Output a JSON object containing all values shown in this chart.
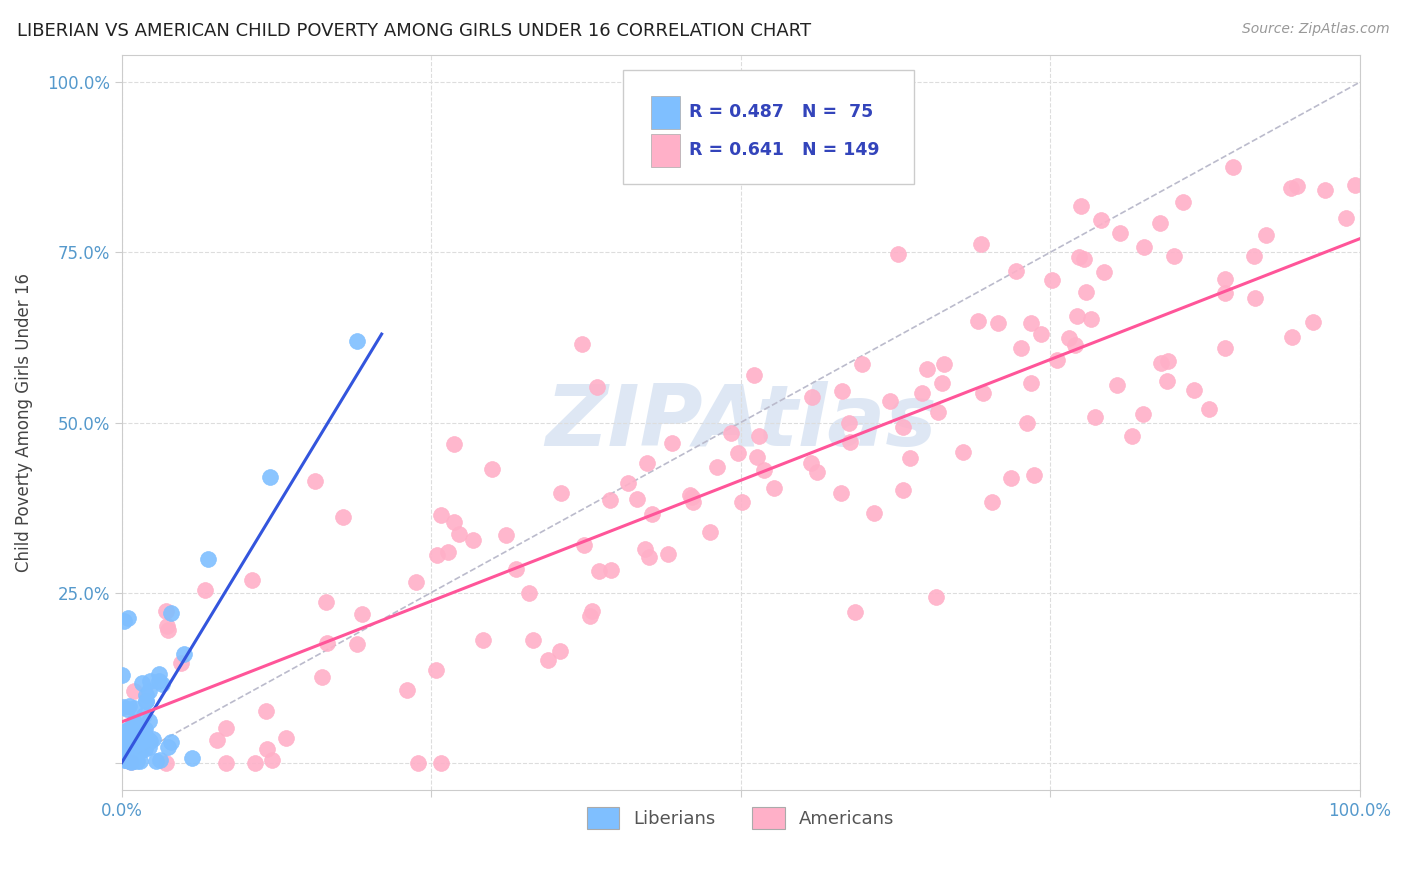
{
  "title": "LIBERIAN VS AMERICAN CHILD POVERTY AMONG GIRLS UNDER 16 CORRELATION CHART",
  "source": "Source: ZipAtlas.com",
  "ylabel": "Child Poverty Among Girls Under 16",
  "legend_liberian": {
    "R": 0.487,
    "N": 75
  },
  "legend_american": {
    "R": 0.641,
    "N": 149
  },
  "background_color": "#ffffff",
  "liberian_dot_color": "#7fbfff",
  "american_dot_color": "#ffb0c8",
  "liberian_line_color": "#3355dd",
  "american_line_color": "#ff5599",
  "diagonal_color": "#bbbbcc",
  "watermark_color": "#c8d8ee",
  "title_color": "#222222",
  "source_color": "#999999",
  "ylabel_color": "#444444",
  "tick_label_color": "#5599cc",
  "grid_color": "#dddddd",
  "spine_color": "#cccccc"
}
